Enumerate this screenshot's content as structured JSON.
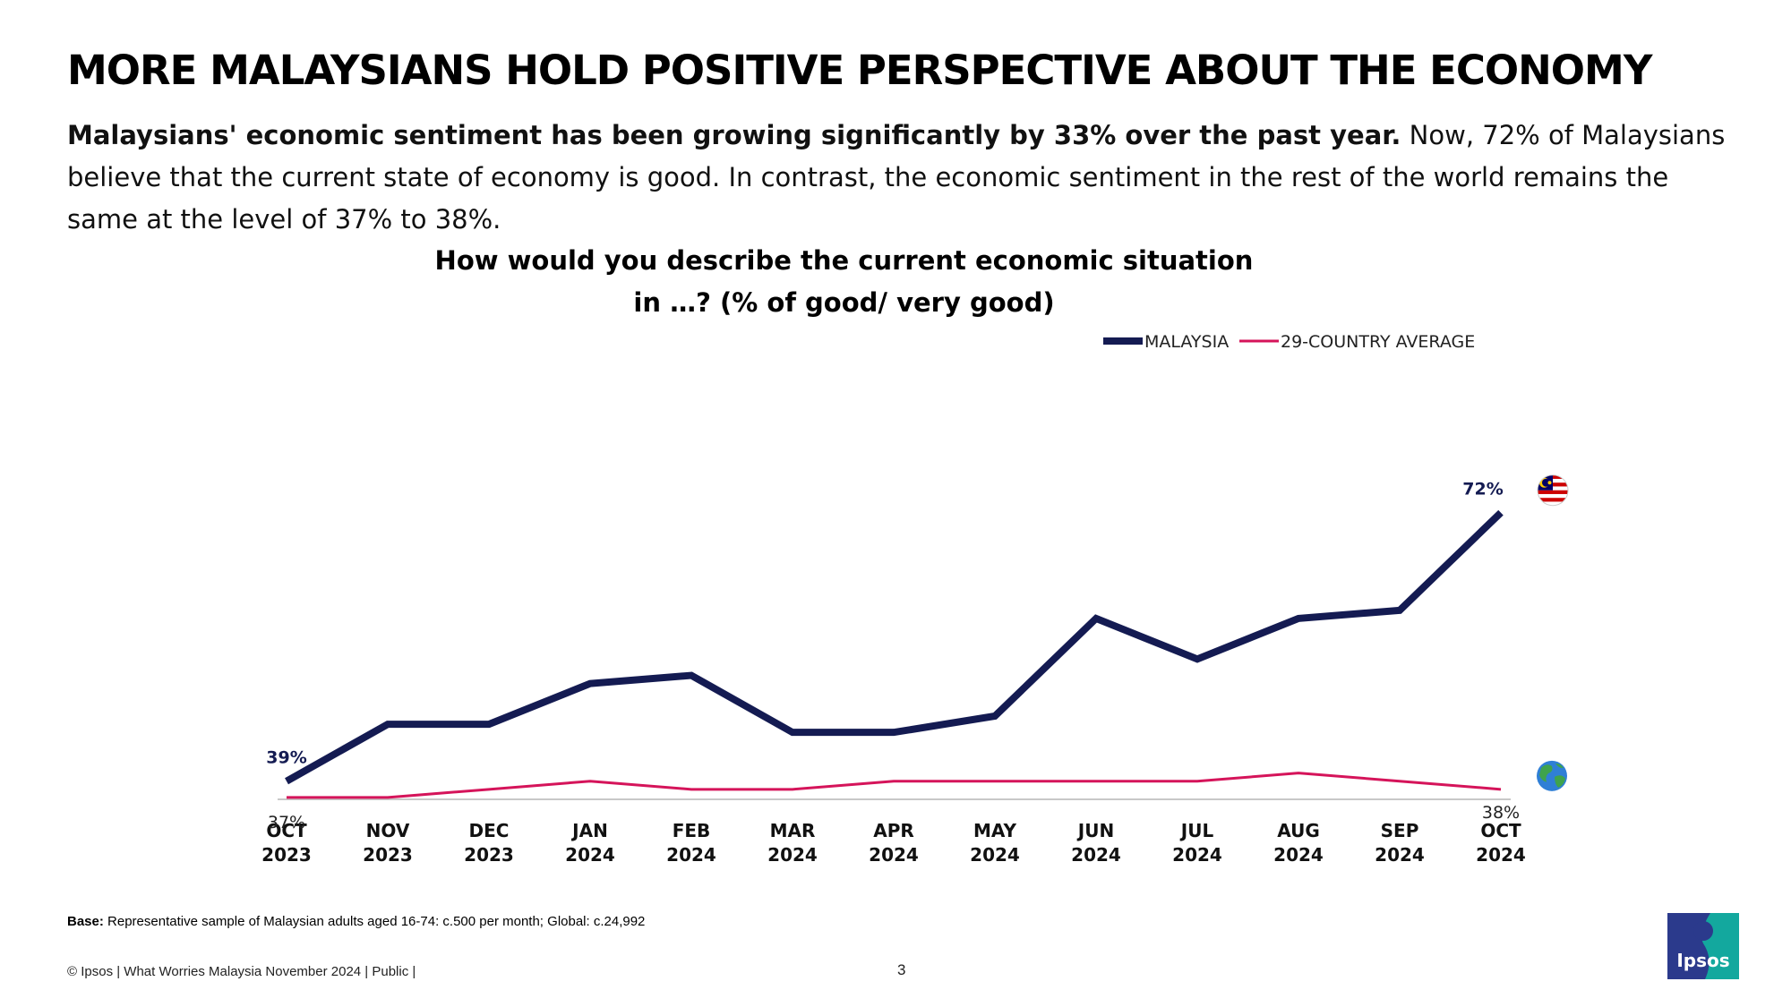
{
  "slide": {
    "title": "MORE MALAYSIANS HOLD POSITIVE PERSPECTIVE ABOUT THE ECONOMY",
    "intro_bold": "Malaysians' economic sentiment has been growing significantly by 33% over the past year.",
    "intro_rest": " Now, 72% of Malaysians believe that the current state of economy is good. In contrast, the economic sentiment in the rest of the world remains the same at the level of 37% to 38%.",
    "base_label": "Base:",
    "base_text": " Representative sample of Malaysian adults aged 16-74: c.500 per month; Global: c.24,992",
    "footer": "© Ipsos | What Worries Malaysia November 2024 | Public |",
    "page_number": "3",
    "logo_text": "Ipsos"
  },
  "chart_data": {
    "type": "line",
    "title_line1": "How would you describe the current economic situation",
    "title_line2": "in …?  (% of good/ very good)",
    "categories": [
      [
        "OCT",
        "2023"
      ],
      [
        "NOV",
        "2023"
      ],
      [
        "DEC",
        "2023"
      ],
      [
        "JAN",
        "2024"
      ],
      [
        "FEB",
        "2024"
      ],
      [
        "MAR",
        "2024"
      ],
      [
        "APR",
        "2024"
      ],
      [
        "MAY",
        "2024"
      ],
      [
        "JUN",
        "2024"
      ],
      [
        "JUL",
        "2024"
      ],
      [
        "AUG",
        "2024"
      ],
      [
        "SEP",
        "2024"
      ],
      [
        "OCT",
        "2024"
      ]
    ],
    "ylim": [
      25,
      80
    ],
    "series": [
      {
        "name": "MALAYSIA",
        "color": "#141b52",
        "values": [
          39,
          46,
          46,
          51,
          52,
          45,
          45,
          47,
          59,
          54,
          59,
          60,
          72
        ],
        "labels": [
          {
            "index": 0,
            "text": "39%"
          },
          {
            "index": 12,
            "text": "72%"
          }
        ],
        "icon": "malaysia-flag-icon"
      },
      {
        "name": "29-COUNTRY AVERAGE",
        "color": "#d5145a",
        "values": [
          37,
          37,
          38,
          39,
          38,
          38,
          39,
          39,
          39,
          39,
          40,
          39,
          38
        ],
        "labels": [
          {
            "index": 0,
            "text": "37%"
          },
          {
            "index": 12,
            "text": "38%"
          }
        ],
        "icon": "globe-icon"
      }
    ],
    "legend_position": "top-right"
  }
}
